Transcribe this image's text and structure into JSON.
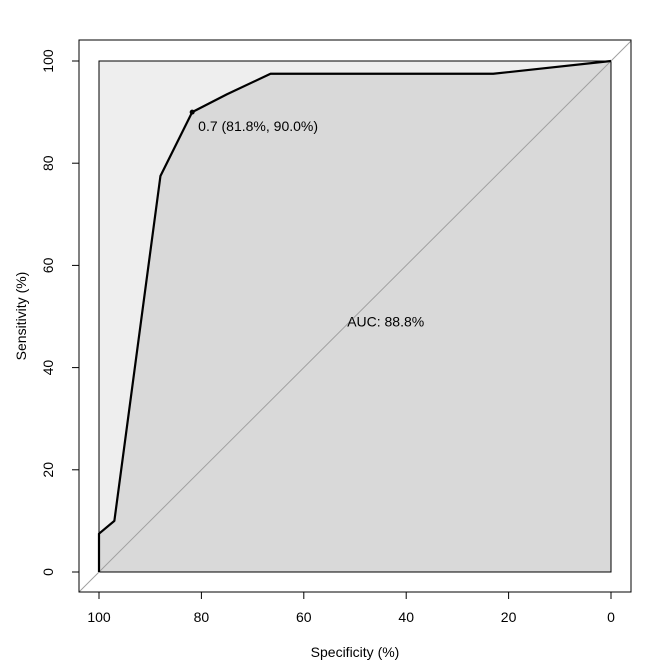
{
  "chart_data": {
    "type": "line",
    "xlabel": "Specificity (%)",
    "ylabel": "Sensitivity (%)",
    "xlim": [
      100,
      0
    ],
    "ylim": [
      0,
      100
    ],
    "x_reversed": true,
    "xticks": [
      100,
      80,
      60,
      40,
      20,
      0
    ],
    "yticks": [
      0,
      20,
      40,
      60,
      80,
      100
    ],
    "series": [
      {
        "specificity": [
          100,
          100,
          97.0,
          88.0,
          81.8,
          75.0,
          66.5,
          23.0,
          0
        ],
        "sensitivity": [
          0,
          7.5,
          10.0,
          77.5,
          90.0,
          93.5,
          97.5,
          97.5,
          100
        ]
      }
    ],
    "threshold_point": {
      "specificity": 81.8,
      "sensitivity": 90.0,
      "label": "0.7 (81.8%, 90.0%)"
    },
    "auc_label": "AUC: 88.8%",
    "auc_position": {
      "specificity": 44,
      "sensitivity": 48
    },
    "colors": {
      "curve": "#000000",
      "auc_fill": "#d9d9d9",
      "region_fill": "#eeeeee",
      "diagonal": "#a0a0a0"
    }
  }
}
